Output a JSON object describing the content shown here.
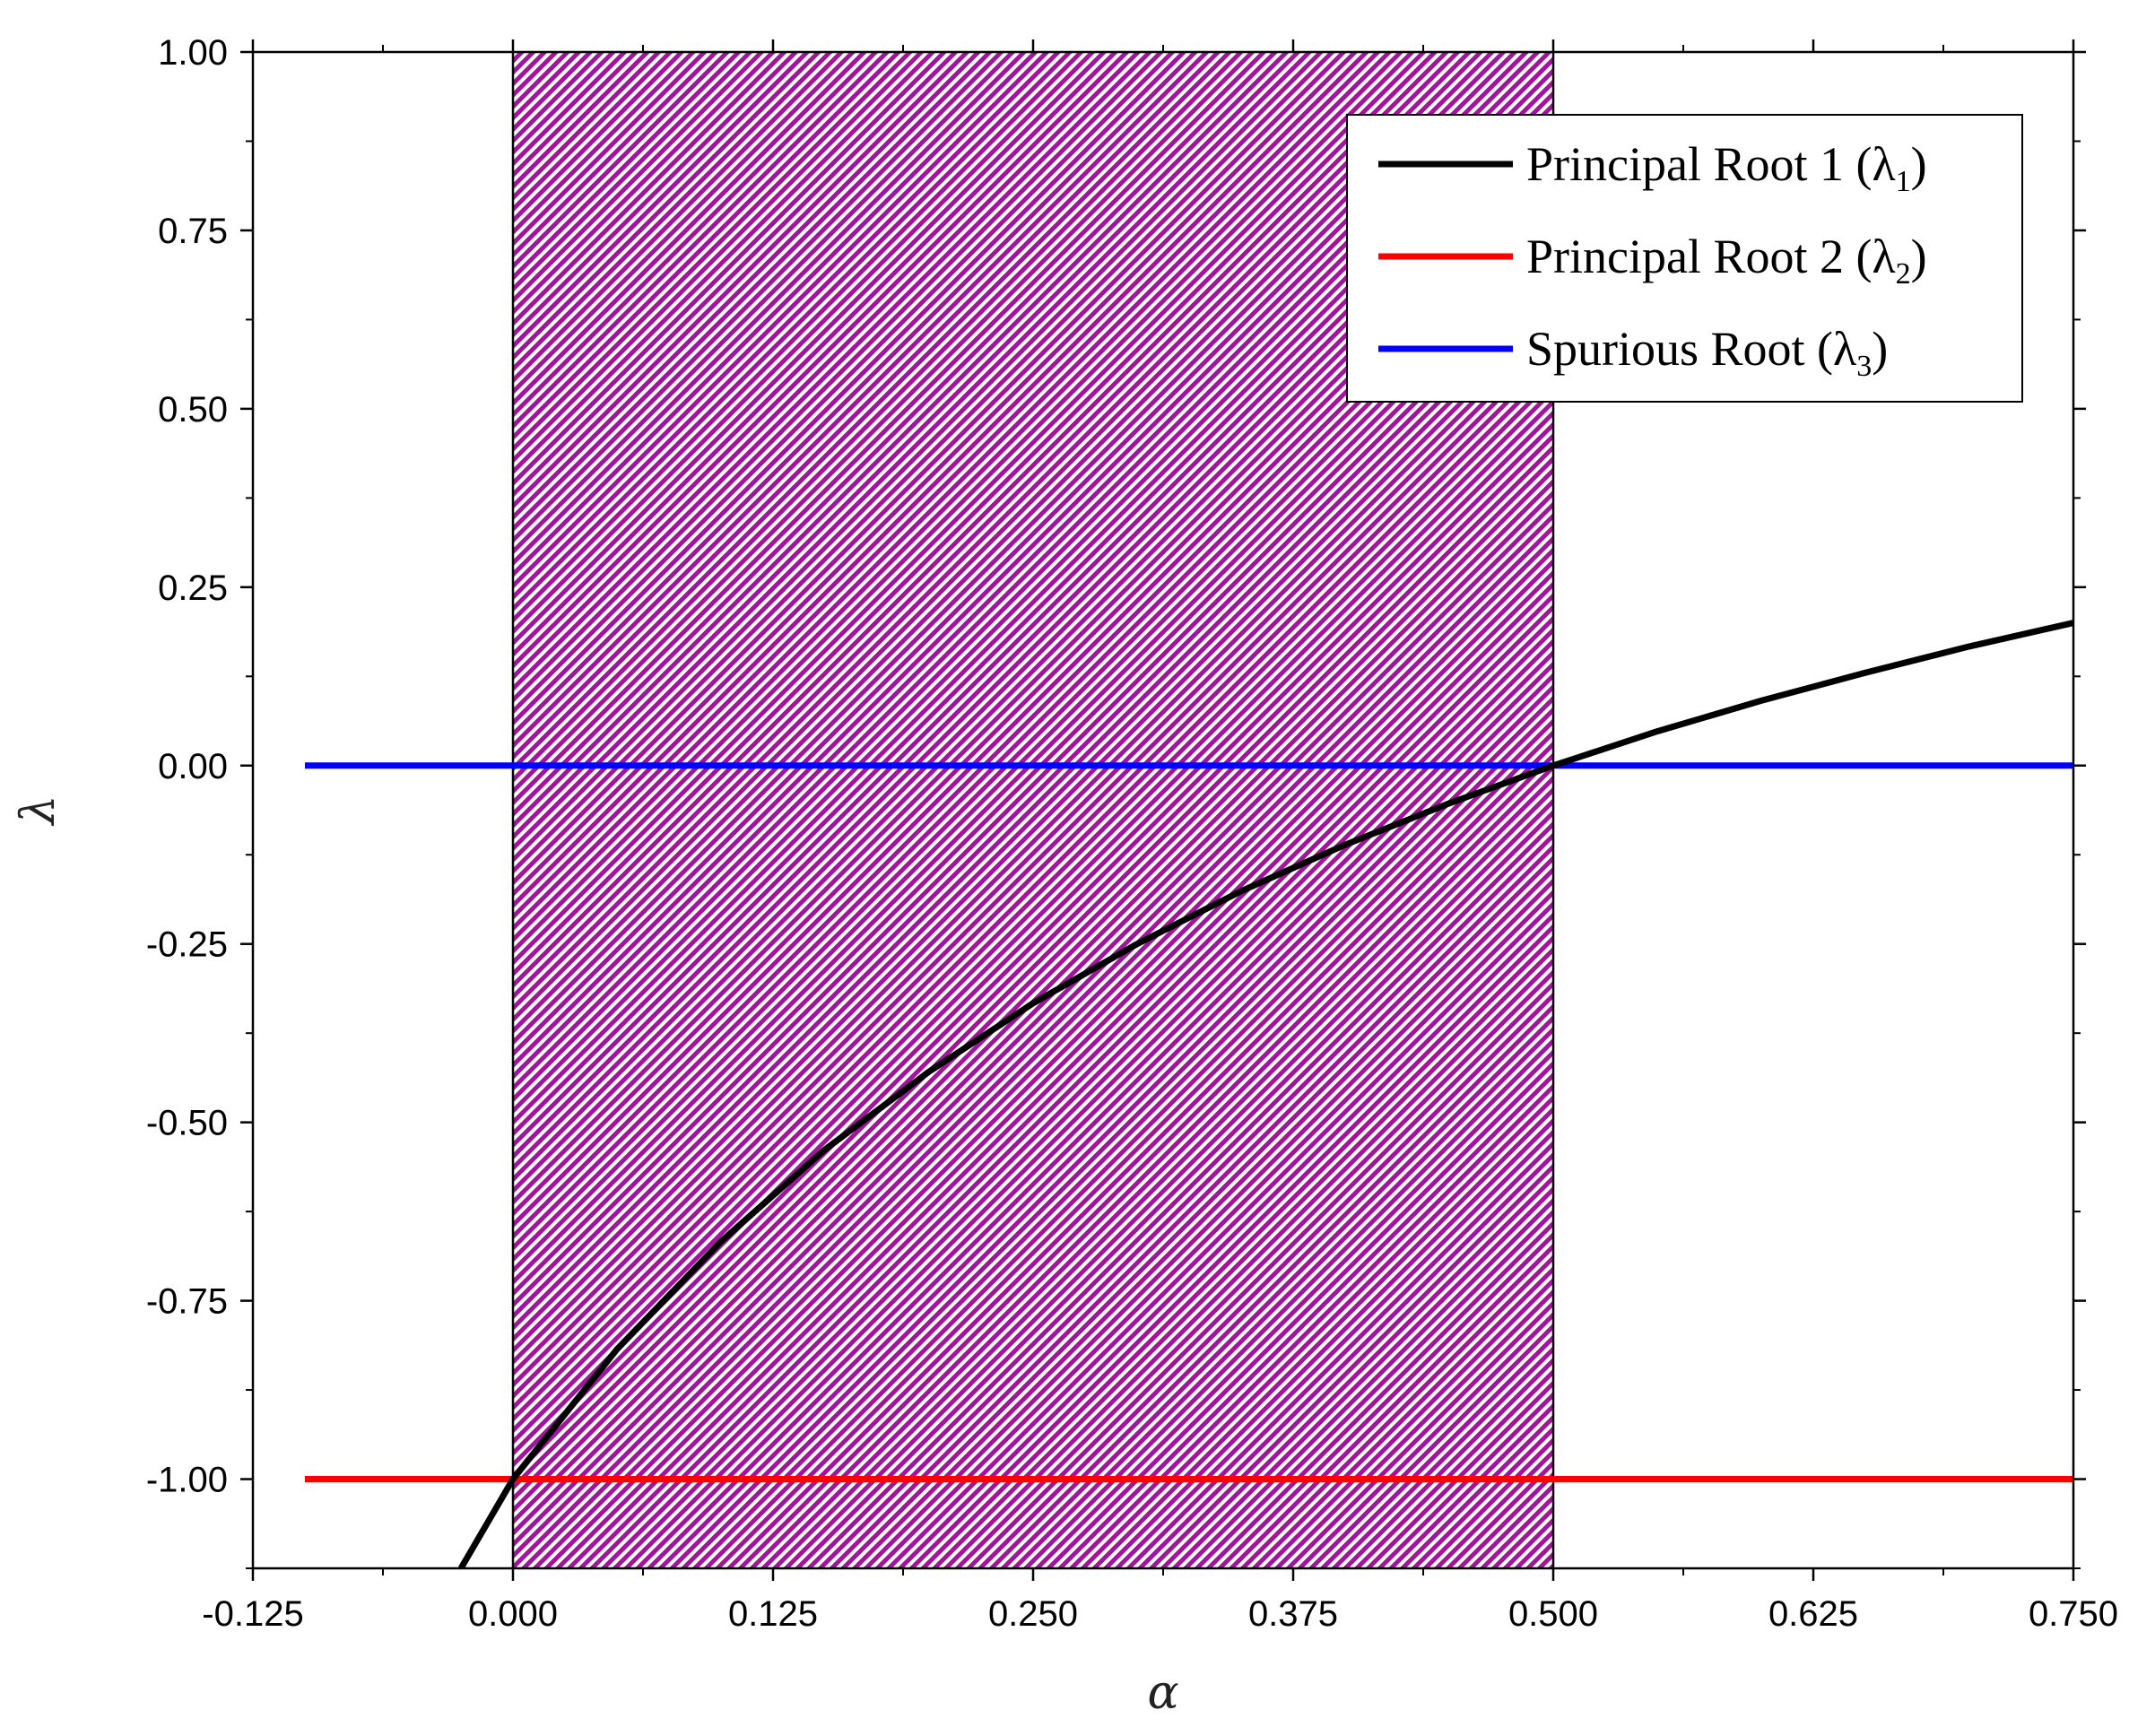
{
  "chart_data": {
    "type": "line",
    "xlabel": "α",
    "ylabel": "λ",
    "xlim": [
      -0.125,
      0.75
    ],
    "ylim": [
      -1.125,
      1.0
    ],
    "xticks": [
      -0.125,
      0.0,
      0.125,
      0.25,
      0.375,
      0.5,
      0.625,
      0.75
    ],
    "xtick_labels": [
      "-0.125",
      "0.000",
      "0.125",
      "0.250",
      "0.375",
      "0.500",
      "0.625",
      "0.750"
    ],
    "yticks": [
      1.0,
      0.75,
      0.5,
      0.25,
      0.0,
      -0.25,
      -0.5,
      -0.75,
      -1.0
    ],
    "ytick_labels": [
      "1.00",
      "0.75",
      "0.50",
      "0.25",
      "0.00",
      "-0.25",
      "-0.50",
      "-0.75",
      "-1.00"
    ],
    "shaded_region": {
      "x": [
        0.0,
        0.5
      ],
      "color": "#a0159a",
      "pattern": "diagonal-hatch"
    },
    "legend_position": "top-right",
    "grid": false,
    "series": [
      {
        "name": "Principal Root 1",
        "symbol": "λ",
        "subscript": "1",
        "close": ")",
        "color": "#000000",
        "x": [
          -0.025,
          0.0,
          0.05,
          0.1,
          0.15,
          0.2,
          0.25,
          0.3,
          0.35,
          0.4,
          0.45,
          0.5,
          0.55,
          0.6,
          0.65,
          0.7,
          0.75
        ],
        "y": [
          -1.125,
          -1.0,
          -0.818,
          -0.667,
          -0.538,
          -0.429,
          -0.333,
          -0.25,
          -0.176,
          -0.111,
          -0.053,
          0.0,
          0.048,
          0.091,
          0.13,
          0.167,
          0.2
        ]
      },
      {
        "name": "Principal Root 2",
        "symbol": "λ",
        "subscript": "2",
        "close": ")",
        "color": "#ff0000",
        "x": [
          -0.1,
          0.75
        ],
        "y": [
          -1.0,
          -1.0
        ]
      },
      {
        "name": "Spurious Root",
        "symbol": "λ",
        "subscript": "3",
        "close": ")",
        "color": "#0000ff",
        "x": [
          -0.1,
          0.75
        ],
        "y": [
          0.0,
          0.0
        ]
      }
    ]
  }
}
